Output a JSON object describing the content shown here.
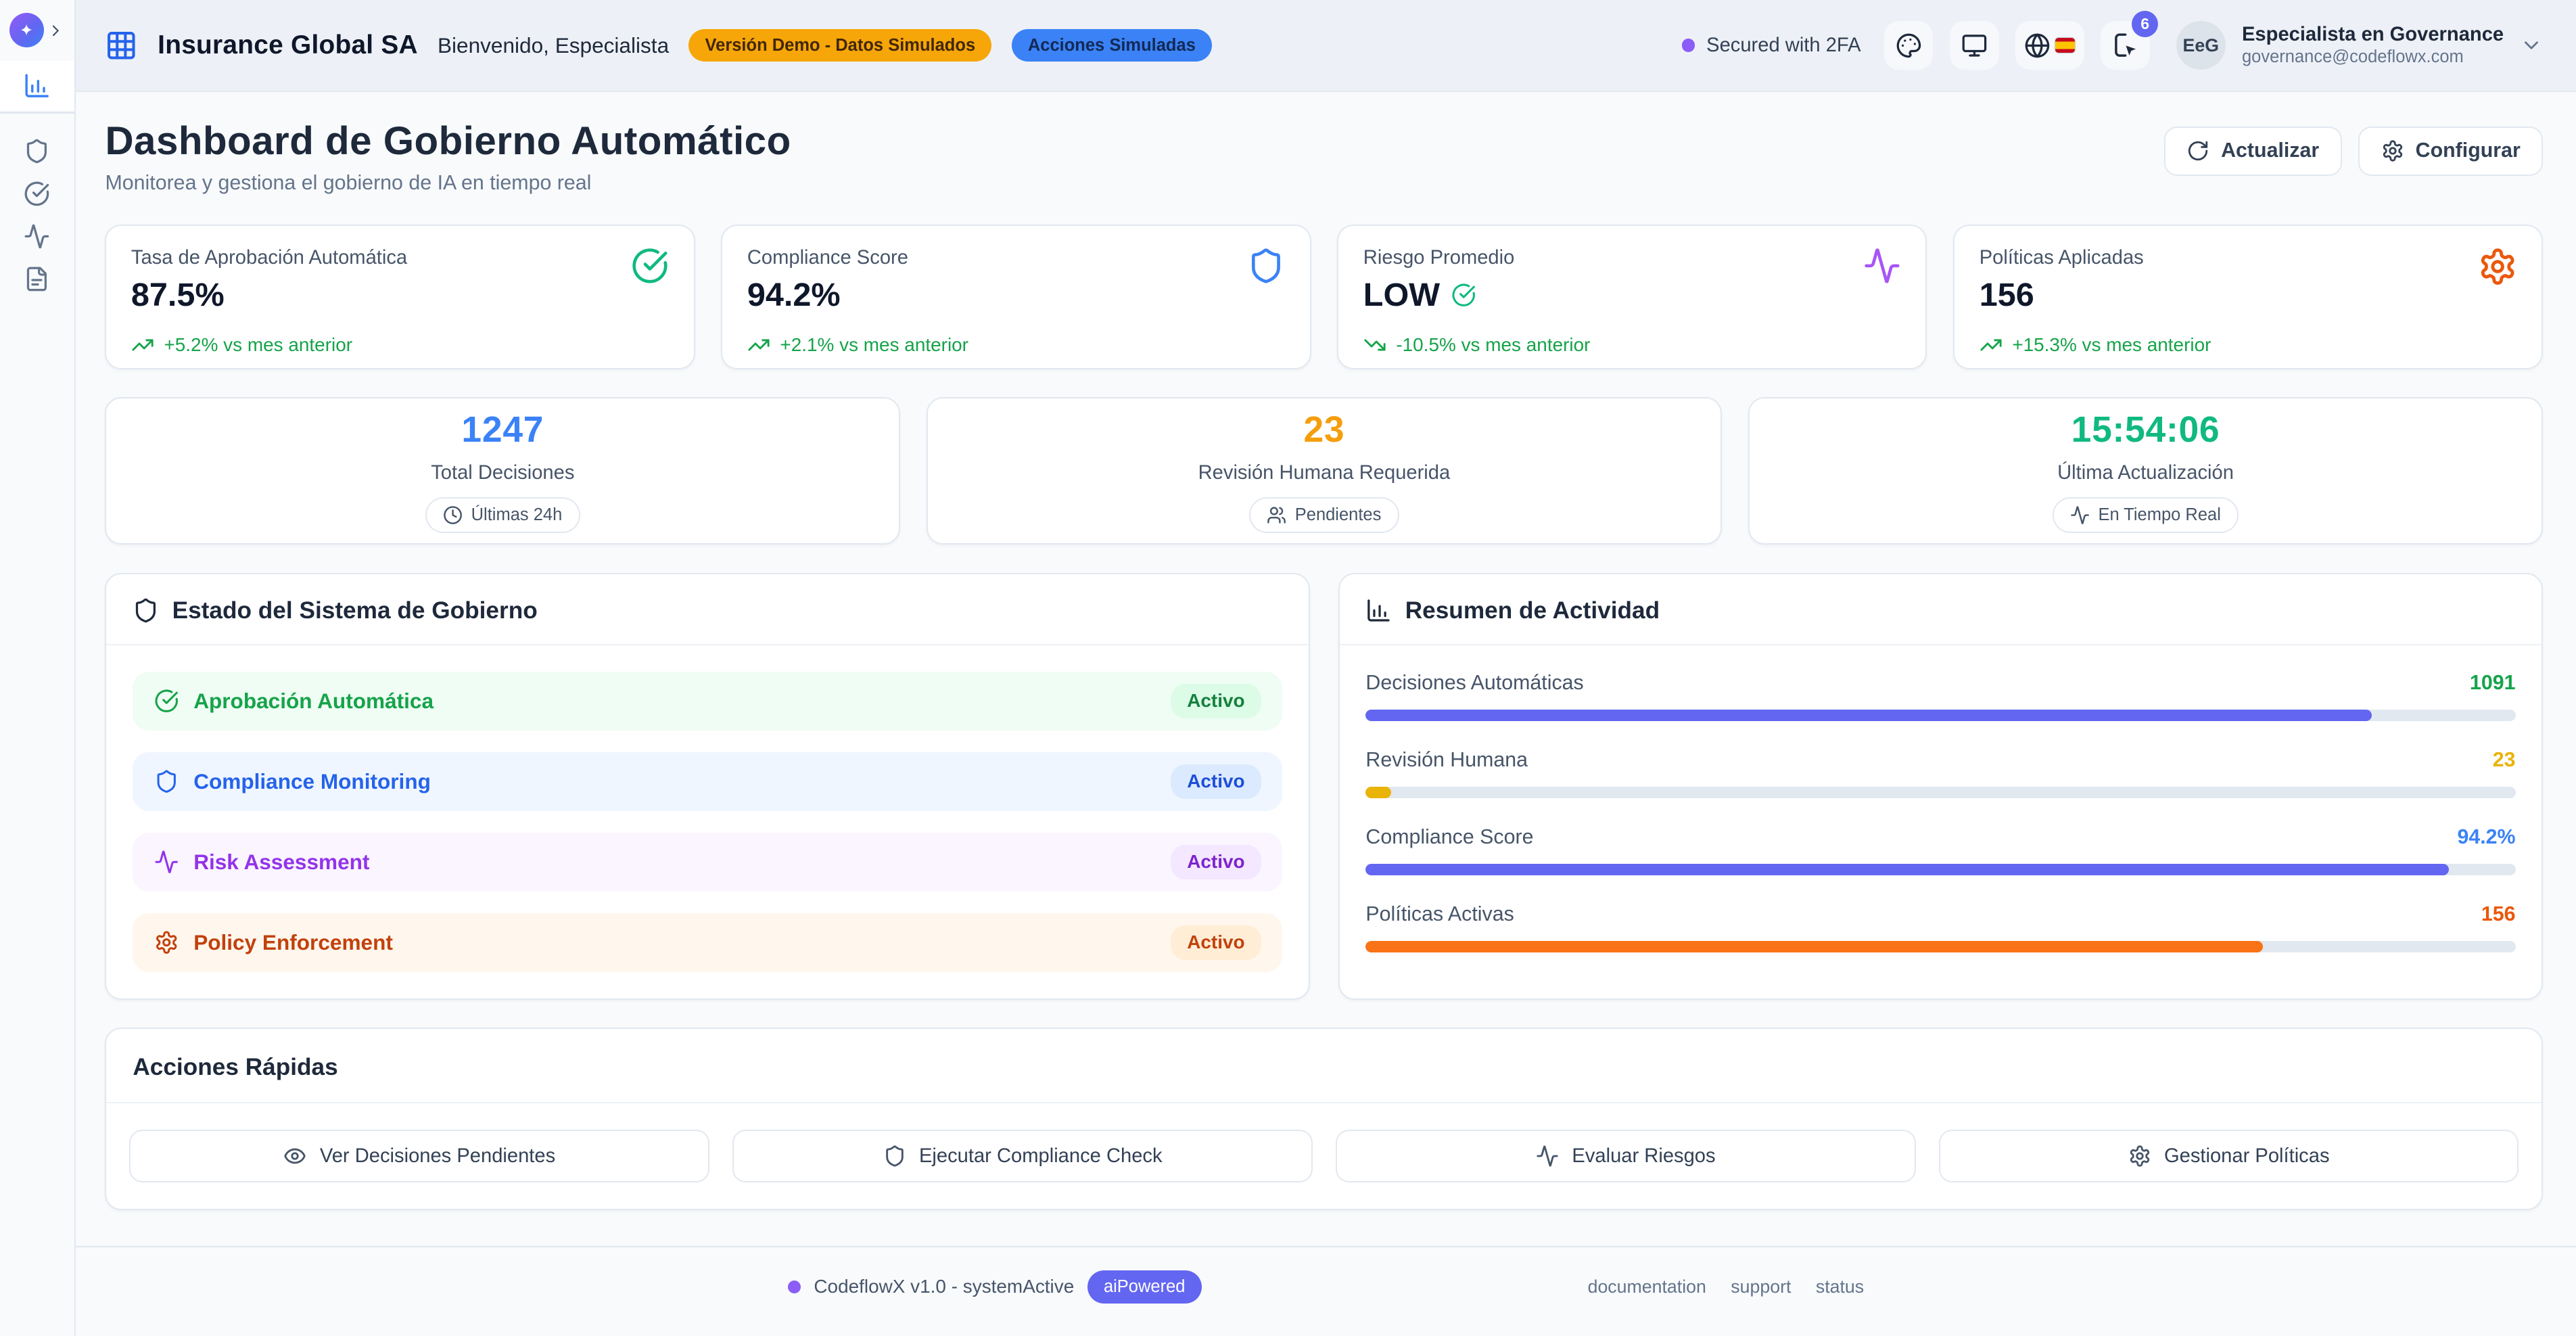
{
  "header": {
    "app_title": "Insurance Global SA",
    "welcome": "Bienvenido, Especialista",
    "badge_demo": "Versión Demo - Datos Simulados",
    "badge_actions": "Acciones Simuladas",
    "secured": "Secured with 2FA",
    "notification_count": "6",
    "avatar_initials": "EeG",
    "user_name": "Especialista en Governance",
    "user_email": "governance@codeflowx.com",
    "icons": [
      "grid-3x3",
      "palette",
      "monitor",
      "globe-es-flag",
      "device-share",
      "chevron-down"
    ]
  },
  "page": {
    "title": "Dashboard de Gobierno Automático",
    "subtitle": "Monitorea y gestiona el gobierno de IA en tiempo real",
    "refresh_label": "Actualizar",
    "configure_label": "Configurar"
  },
  "stat_cards": [
    {
      "label": "Tasa de Aprobación Automática",
      "value": "87.5%",
      "trend": "+5.2% vs mes anterior",
      "trend_dir": "up",
      "icon": "check-circle",
      "icon_color": "#10b981"
    },
    {
      "label": "Compliance Score",
      "value": "94.2%",
      "trend": "+2.1% vs mes anterior",
      "trend_dir": "up",
      "icon": "shield",
      "icon_color": "#3b82f6"
    },
    {
      "label": "Riesgo Promedio",
      "value": "LOW",
      "value_icon": "check-circle",
      "trend": "-10.5% vs mes anterior",
      "trend_dir": "down",
      "icon": "activity",
      "icon_color": "#a855f7"
    },
    {
      "label": "Políticas Aplicadas",
      "value": "156",
      "trend": "+15.3% vs mes anterior",
      "trend_dir": "up",
      "icon": "gear",
      "icon_color": "#ea580c"
    }
  ],
  "metric_cards": [
    {
      "value": "1247",
      "value_color": "#3b82f6",
      "label": "Total Decisiones",
      "badge": "Últimas 24h",
      "badge_icon": "clock"
    },
    {
      "value": "23",
      "value_color": "#f59e0b",
      "label": "Revisión Humana Requerida",
      "badge": "Pendientes",
      "badge_icon": "users"
    },
    {
      "value": "15:54:06",
      "value_color": "#10b981",
      "label": "Última Actualización",
      "badge": "En Tiempo Real",
      "badge_icon": "activity"
    }
  ],
  "system_status": {
    "title": "Estado del Sistema de Gobierno",
    "title_icon": "shield",
    "items": [
      {
        "label": "Aprobación Automática",
        "status": "Activo",
        "icon": "check-circle",
        "theme": "green"
      },
      {
        "label": "Compliance Monitoring",
        "status": "Activo",
        "icon": "shield",
        "theme": "blue"
      },
      {
        "label": "Risk Assessment",
        "status": "Activo",
        "icon": "activity",
        "theme": "purple"
      },
      {
        "label": "Policy Enforcement",
        "status": "Activo",
        "icon": "gear",
        "theme": "orange"
      }
    ]
  },
  "activity_summary": {
    "title": "Resumen de Actividad",
    "title_icon": "bar-chart",
    "items": [
      {
        "label": "Decisiones Automáticas",
        "value": "1091",
        "value_color": "#16a34a",
        "percent": 87.5,
        "bar_color": "#6366f1"
      },
      {
        "label": "Revisión Humana",
        "value": "23",
        "value_color": "#eab308",
        "percent": 2.2,
        "bar_color": "#eab308"
      },
      {
        "label": "Compliance Score",
        "value": "94.2%",
        "value_color": "#3b82f6",
        "percent": 94.2,
        "bar_color": "#6366f1"
      },
      {
        "label": "Políticas Activas",
        "value": "156",
        "value_color": "#ea580c",
        "percent": 78,
        "bar_color": "#f97316"
      }
    ]
  },
  "quick_actions": {
    "title": "Acciones Rápidas",
    "buttons": [
      {
        "label": "Ver Decisiones Pendientes",
        "icon": "eye"
      },
      {
        "label": "Ejecutar Compliance Check",
        "icon": "shield"
      },
      {
        "label": "Evaluar Riesgos",
        "icon": "activity"
      },
      {
        "label": "Gestionar Políticas",
        "icon": "gear"
      }
    ]
  },
  "footer": {
    "version": "CodeflowX v1.0 - systemActive",
    "badge": "aiPowered",
    "links": [
      "documentation",
      "support",
      "status"
    ]
  },
  "sidebar": {
    "items": [
      {
        "icon": "bar-chart",
        "active": true
      },
      {
        "icon": "shield"
      },
      {
        "icon": "check-circle"
      },
      {
        "icon": "activity"
      },
      {
        "icon": "file-text"
      }
    ]
  }
}
